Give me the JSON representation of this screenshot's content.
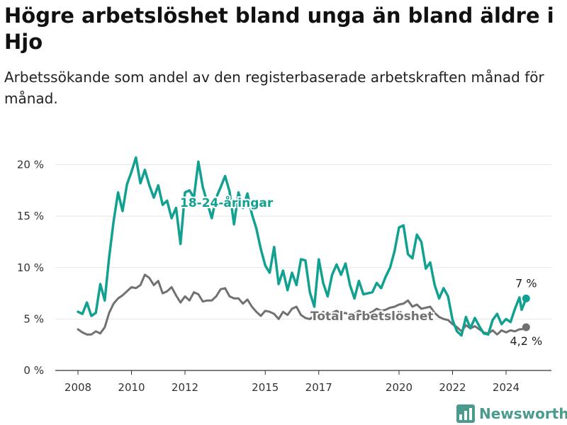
{
  "title": "Högre arbetslöshet bland unga än bland äldre i Hjo",
  "subtitle": "Arbetssökande som andel av den registerbaserade arbetskraften månad för månad.",
  "brand": "Newsworthy",
  "colors": {
    "youth": "#12a190",
    "total": "#717171",
    "grid": "#e6e6e6",
    "brand": "#4a9b8e"
  },
  "chart_data": {
    "type": "line",
    "title": "",
    "xlabel": "",
    "ylabel": "",
    "ylim": [
      0,
      21
    ],
    "grid": true,
    "x_ticks": [
      2008,
      2010,
      2012,
      2015,
      2017,
      2020,
      2022,
      2024
    ],
    "y_ticks": [
      {
        "value": 0,
        "label": "0 %"
      },
      {
        "value": 5,
        "label": "5 %"
      },
      {
        "value": 10,
        "label": "10 %"
      },
      {
        "value": 15,
        "label": "15 %"
      },
      {
        "value": 20,
        "label": "20 %"
      }
    ],
    "series": [
      {
        "name": "18-24-åringar",
        "color": "#12a190",
        "end_label": "7 %",
        "points": [
          [
            "2008-01",
            5.7
          ],
          [
            "2008-03",
            5.5
          ],
          [
            "2008-05",
            6.6
          ],
          [
            "2008-07",
            5.3
          ],
          [
            "2008-09",
            5.6
          ],
          [
            "2008-11",
            8.4
          ],
          [
            "2009-01",
            6.8
          ],
          [
            "2009-03",
            11.0
          ],
          [
            "2009-05",
            14.5
          ],
          [
            "2009-07",
            17.3
          ],
          [
            "2009-09",
            15.5
          ],
          [
            "2009-11",
            18.1
          ],
          [
            "2010-01",
            19.3
          ],
          [
            "2010-03",
            20.7
          ],
          [
            "2010-05",
            18.2
          ],
          [
            "2010-07",
            19.5
          ],
          [
            "2010-09",
            18.0
          ],
          [
            "2010-11",
            16.8
          ],
          [
            "2011-01",
            18.0
          ],
          [
            "2011-03",
            16.1
          ],
          [
            "2011-05",
            16.5
          ],
          [
            "2011-07",
            14.8
          ],
          [
            "2011-09",
            15.8
          ],
          [
            "2011-11",
            12.3
          ],
          [
            "2012-01",
            17.3
          ],
          [
            "2012-03",
            17.5
          ],
          [
            "2012-05",
            16.8
          ],
          [
            "2012-07",
            20.3
          ],
          [
            "2012-09",
            17.8
          ],
          [
            "2012-11",
            16.3
          ],
          [
            "2013-01",
            14.8
          ],
          [
            "2013-03",
            16.8
          ],
          [
            "2013-05",
            17.8
          ],
          [
            "2013-07",
            18.9
          ],
          [
            "2013-09",
            17.4
          ],
          [
            "2013-11",
            14.2
          ],
          [
            "2014-01",
            17.3
          ],
          [
            "2014-03",
            15.8
          ],
          [
            "2014-05",
            17.2
          ],
          [
            "2014-07",
            15.2
          ],
          [
            "2014-09",
            13.8
          ],
          [
            "2014-11",
            11.8
          ],
          [
            "2015-01",
            10.2
          ],
          [
            "2015-03",
            9.5
          ],
          [
            "2015-05",
            12.0
          ],
          [
            "2015-07",
            8.4
          ],
          [
            "2015-09",
            9.7
          ],
          [
            "2015-11",
            7.8
          ],
          [
            "2016-01",
            9.5
          ],
          [
            "2016-03",
            8.3
          ],
          [
            "2016-05",
            10.8
          ],
          [
            "2016-07",
            10.7
          ],
          [
            "2016-09",
            7.6
          ],
          [
            "2016-11",
            6.2
          ],
          [
            "2017-01",
            10.8
          ],
          [
            "2017-03",
            8.5
          ],
          [
            "2017-05",
            7.2
          ],
          [
            "2017-07",
            9.3
          ],
          [
            "2017-09",
            10.3
          ],
          [
            "2017-11",
            9.3
          ],
          [
            "2018-01",
            10.4
          ],
          [
            "2018-03",
            8.3
          ],
          [
            "2018-05",
            7.0
          ],
          [
            "2018-07",
            8.7
          ],
          [
            "2018-09",
            7.4
          ],
          [
            "2018-11",
            7.5
          ],
          [
            "2019-01",
            7.6
          ],
          [
            "2019-03",
            8.5
          ],
          [
            "2019-05",
            8.0
          ],
          [
            "2019-07",
            9.1
          ],
          [
            "2019-09",
            10.0
          ],
          [
            "2019-11",
            11.6
          ],
          [
            "2020-01",
            13.9
          ],
          [
            "2020-03",
            14.1
          ],
          [
            "2020-05",
            11.3
          ],
          [
            "2020-07",
            10.9
          ],
          [
            "2020-09",
            13.2
          ],
          [
            "2020-11",
            12.5
          ],
          [
            "2021-01",
            9.9
          ],
          [
            "2021-03",
            10.5
          ],
          [
            "2021-05",
            8.3
          ],
          [
            "2021-07",
            7.0
          ],
          [
            "2021-09",
            8.0
          ],
          [
            "2021-11",
            7.2
          ],
          [
            "2022-01",
            4.9
          ],
          [
            "2022-03",
            3.8
          ],
          [
            "2022-05",
            3.4
          ],
          [
            "2022-07",
            5.2
          ],
          [
            "2022-09",
            4.1
          ],
          [
            "2022-11",
            5.1
          ],
          [
            "2023-01",
            4.3
          ],
          [
            "2023-03",
            3.6
          ],
          [
            "2023-05",
            3.5
          ],
          [
            "2023-07",
            4.9
          ],
          [
            "2023-09",
            5.5
          ],
          [
            "2023-11",
            4.5
          ],
          [
            "2024-01",
            5.0
          ],
          [
            "2024-03",
            4.7
          ],
          [
            "2024-05",
            6.0
          ],
          [
            "2024-07",
            7.1
          ],
          [
            "2024-08",
            5.9
          ],
          [
            "2024-10",
            7.0
          ]
        ]
      },
      {
        "name": "Total arbetslöshet",
        "color": "#717171",
        "end_label": "4,2 %",
        "points": [
          [
            "2008-01",
            4.0
          ],
          [
            "2008-03",
            3.7
          ],
          [
            "2008-05",
            3.5
          ],
          [
            "2008-07",
            3.5
          ],
          [
            "2008-09",
            3.8
          ],
          [
            "2008-11",
            3.6
          ],
          [
            "2009-01",
            4.2
          ],
          [
            "2009-03",
            5.6
          ],
          [
            "2009-05",
            6.5
          ],
          [
            "2009-07",
            7.0
          ],
          [
            "2009-09",
            7.3
          ],
          [
            "2009-11",
            7.7
          ],
          [
            "2010-01",
            8.1
          ],
          [
            "2010-03",
            8.0
          ],
          [
            "2010-05",
            8.3
          ],
          [
            "2010-07",
            9.3
          ],
          [
            "2010-09",
            9.0
          ],
          [
            "2010-11",
            8.3
          ],
          [
            "2011-01",
            8.7
          ],
          [
            "2011-03",
            7.5
          ],
          [
            "2011-05",
            7.7
          ],
          [
            "2011-07",
            8.1
          ],
          [
            "2011-09",
            7.3
          ],
          [
            "2011-11",
            6.6
          ],
          [
            "2012-01",
            7.2
          ],
          [
            "2012-03",
            6.8
          ],
          [
            "2012-05",
            7.6
          ],
          [
            "2012-07",
            7.4
          ],
          [
            "2012-09",
            6.7
          ],
          [
            "2012-11",
            6.8
          ],
          [
            "2013-01",
            6.8
          ],
          [
            "2013-03",
            7.2
          ],
          [
            "2013-05",
            7.9
          ],
          [
            "2013-07",
            8.0
          ],
          [
            "2013-09",
            7.2
          ],
          [
            "2013-11",
            7.0
          ],
          [
            "2014-01",
            7.0
          ],
          [
            "2014-03",
            6.5
          ],
          [
            "2014-05",
            6.9
          ],
          [
            "2014-07",
            6.2
          ],
          [
            "2014-09",
            5.7
          ],
          [
            "2014-11",
            5.3
          ],
          [
            "2015-01",
            5.8
          ],
          [
            "2015-03",
            5.7
          ],
          [
            "2015-05",
            5.5
          ],
          [
            "2015-07",
            5.0
          ],
          [
            "2015-09",
            5.7
          ],
          [
            "2015-11",
            5.4
          ],
          [
            "2016-01",
            6.0
          ],
          [
            "2016-03",
            6.2
          ],
          [
            "2016-05",
            5.4
          ],
          [
            "2016-07",
            5.1
          ],
          [
            "2016-09",
            5.0
          ],
          [
            "2016-11",
            5.3
          ],
          [
            "2017-01",
            5.3
          ],
          [
            "2017-03",
            5.7
          ],
          [
            "2017-05",
            5.4
          ],
          [
            "2017-07",
            5.6
          ],
          [
            "2017-09",
            5.8
          ],
          [
            "2017-11",
            5.5
          ],
          [
            "2018-01",
            5.6
          ],
          [
            "2018-03",
            5.4
          ],
          [
            "2018-05",
            5.5
          ],
          [
            "2018-07",
            5.8
          ],
          [
            "2018-09",
            5.6
          ],
          [
            "2018-11",
            5.5
          ],
          [
            "2019-01",
            5.7
          ],
          [
            "2019-03",
            6.0
          ],
          [
            "2019-05",
            5.8
          ],
          [
            "2019-07",
            5.9
          ],
          [
            "2019-09",
            6.1
          ],
          [
            "2019-11",
            6.2
          ],
          [
            "2020-01",
            6.4
          ],
          [
            "2020-03",
            6.5
          ],
          [
            "2020-05",
            6.8
          ],
          [
            "2020-07",
            6.2
          ],
          [
            "2020-09",
            6.4
          ],
          [
            "2020-11",
            6.0
          ],
          [
            "2021-01",
            6.1
          ],
          [
            "2021-03",
            6.2
          ],
          [
            "2021-05",
            5.6
          ],
          [
            "2021-07",
            5.2
          ],
          [
            "2021-09",
            5.0
          ],
          [
            "2021-11",
            4.9
          ],
          [
            "2022-01",
            4.5
          ],
          [
            "2022-03",
            4.2
          ],
          [
            "2022-05",
            3.8
          ],
          [
            "2022-07",
            4.4
          ],
          [
            "2022-09",
            4.1
          ],
          [
            "2022-11",
            4.3
          ],
          [
            "2023-01",
            4.0
          ],
          [
            "2023-03",
            3.7
          ],
          [
            "2023-05",
            3.6
          ],
          [
            "2023-07",
            3.9
          ],
          [
            "2023-09",
            3.5
          ],
          [
            "2023-11",
            3.9
          ],
          [
            "2024-01",
            3.7
          ],
          [
            "2024-03",
            3.9
          ],
          [
            "2024-05",
            3.8
          ],
          [
            "2024-07",
            4.0
          ],
          [
            "2024-08",
            4.0
          ],
          [
            "2024-10",
            4.2
          ]
        ]
      }
    ]
  }
}
